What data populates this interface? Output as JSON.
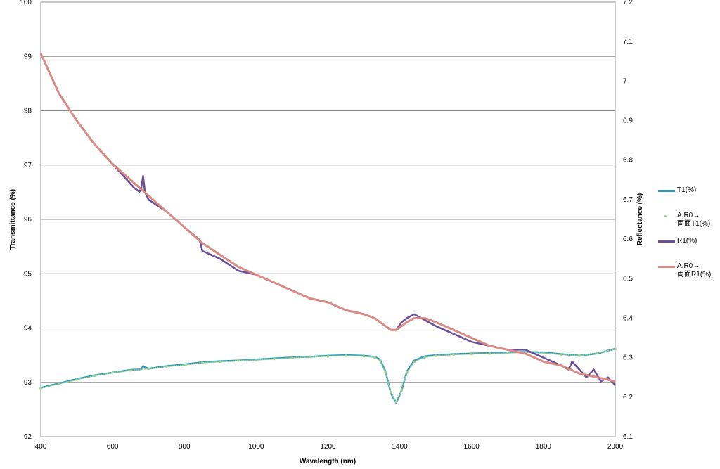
{
  "chart_data": {
    "type": "line",
    "xlabel": "Wavelength (nm)",
    "ylabel": "Transmittance (%)",
    "y2label": "Reflectance (%)",
    "xlim": [
      400,
      2000
    ],
    "ylim": [
      92,
      100
    ],
    "y2lim": [
      6.1,
      7.2
    ],
    "xticks": [
      "400",
      "600",
      "800",
      "1000",
      "1200",
      "1400",
      "1600",
      "1800",
      "2000"
    ],
    "yticks": [
      "92",
      "93",
      "94",
      "95",
      "96",
      "97",
      "98",
      "99",
      "100"
    ],
    "y2ticks": [
      "6.1",
      "6.2",
      "6.3",
      "6.4",
      "6.5",
      "6.6",
      "6.7",
      "6.8",
      "6.9",
      "7",
      "7.1",
      "7.2"
    ],
    "grid": true,
    "legend_position": "right",
    "series": [
      {
        "name": "T1(%)",
        "axis": "left",
        "color": "#2f9bbf",
        "style": "line",
        "x": [
          400,
          450,
          500,
          550,
          600,
          650,
          680,
          685,
          700,
          750,
          800,
          850,
          900,
          950,
          1000,
          1050,
          1100,
          1150,
          1200,
          1250,
          1300,
          1330,
          1345,
          1360,
          1375,
          1390,
          1405,
          1420,
          1440,
          1470,
          1500,
          1550,
          1600,
          1650,
          1700,
          1750,
          1800,
          1850,
          1900,
          1950,
          2000
        ],
        "values": [
          92.9,
          92.98,
          93.06,
          93.13,
          93.18,
          93.23,
          93.24,
          93.3,
          93.25,
          93.3,
          93.33,
          93.37,
          93.39,
          93.4,
          93.42,
          93.44,
          93.46,
          93.47,
          93.49,
          93.5,
          93.49,
          93.47,
          93.42,
          93.2,
          92.8,
          92.62,
          92.85,
          93.2,
          93.4,
          93.48,
          93.5,
          93.52,
          93.53,
          93.54,
          93.55,
          93.56,
          93.55,
          93.52,
          93.49,
          93.53,
          93.62
        ]
      },
      {
        "name": "A,R0→\n両面T1(%)",
        "axis": "left",
        "color": "#9bd08c",
        "style": "markers",
        "x": [
          400,
          450,
          500,
          550,
          600,
          650,
          700,
          750,
          800,
          850,
          900,
          950,
          1000,
          1050,
          1100,
          1150,
          1200,
          1250,
          1300,
          1330,
          1345,
          1360,
          1375,
          1390,
          1405,
          1420,
          1440,
          1470,
          1500,
          1550,
          1600,
          1650,
          1700,
          1750,
          1800,
          1850,
          1900,
          1950,
          2000
        ],
        "values": [
          92.89,
          92.97,
          93.05,
          93.12,
          93.18,
          93.22,
          93.25,
          93.29,
          93.32,
          93.36,
          93.38,
          93.4,
          93.41,
          93.43,
          93.45,
          93.47,
          93.48,
          93.49,
          93.48,
          93.46,
          93.4,
          93.18,
          92.82,
          92.64,
          92.86,
          93.18,
          93.38,
          93.46,
          93.49,
          93.51,
          93.52,
          93.53,
          93.54,
          93.55,
          93.54,
          93.51,
          93.49,
          93.54,
          93.61
        ]
      },
      {
        "name": "R1(%)",
        "axis": "right",
        "color": "#6a4e9a",
        "style": "line",
        "x": [
          400,
          450,
          500,
          550,
          600,
          630,
          660,
          675,
          680,
          685,
          690,
          700,
          750,
          800,
          840,
          845,
          850,
          900,
          950,
          1000,
          1050,
          1100,
          1150,
          1200,
          1250,
          1300,
          1330,
          1345,
          1360,
          1375,
          1390,
          1405,
          1420,
          1440,
          1460,
          1480,
          1500,
          1550,
          1600,
          1650,
          1700,
          1750,
          1800,
          1850,
          1870,
          1880,
          1900,
          1920,
          1940,
          1960,
          1980,
          2000
        ],
        "values": [
          7.07,
          6.97,
          6.9,
          6.84,
          6.79,
          6.76,
          6.73,
          6.72,
          6.73,
          6.76,
          6.72,
          6.7,
          6.67,
          6.63,
          6.6,
          6.59,
          6.57,
          6.55,
          6.52,
          6.51,
          6.49,
          6.47,
          6.45,
          6.44,
          6.42,
          6.41,
          6.4,
          6.39,
          6.38,
          6.37,
          6.37,
          6.39,
          6.4,
          6.41,
          6.4,
          6.39,
          6.38,
          6.36,
          6.34,
          6.33,
          6.32,
          6.32,
          6.3,
          6.28,
          6.27,
          6.29,
          6.27,
          6.25,
          6.27,
          6.24,
          6.25,
          6.23
        ]
      },
      {
        "name": "A,R0→\n両面R1(%)",
        "axis": "right",
        "color": "#d88a84",
        "style": "line",
        "x": [
          400,
          450,
          500,
          550,
          600,
          650,
          700,
          750,
          800,
          850,
          900,
          950,
          1000,
          1050,
          1100,
          1150,
          1200,
          1250,
          1300,
          1330,
          1345,
          1360,
          1375,
          1390,
          1405,
          1420,
          1440,
          1470,
          1500,
          1550,
          1600,
          1650,
          1700,
          1750,
          1800,
          1850,
          1900,
          1950,
          2000
        ],
        "values": [
          7.07,
          6.97,
          6.9,
          6.84,
          6.79,
          6.75,
          6.71,
          6.67,
          6.63,
          6.59,
          6.56,
          6.53,
          6.51,
          6.49,
          6.47,
          6.45,
          6.44,
          6.42,
          6.41,
          6.4,
          6.39,
          6.38,
          6.37,
          6.37,
          6.38,
          6.39,
          6.4,
          6.4,
          6.39,
          6.37,
          6.35,
          6.33,
          6.32,
          6.31,
          6.29,
          6.28,
          6.26,
          6.25,
          6.24
        ]
      }
    ]
  }
}
